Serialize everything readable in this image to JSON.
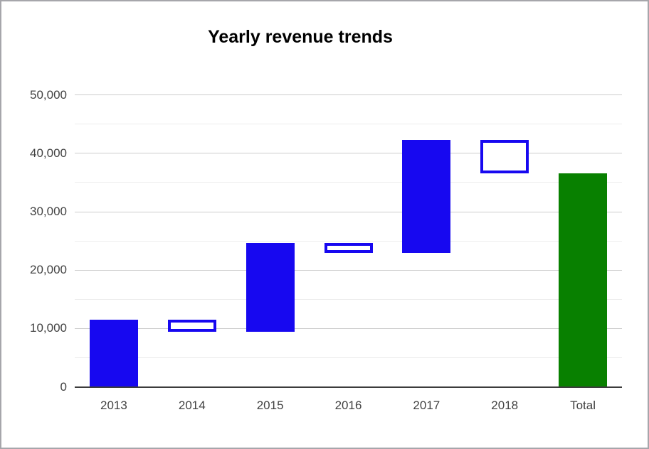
{
  "window": {
    "background_color": "#ffffff",
    "border_color": "#a6a6ab"
  },
  "chart_data": {
    "type": "bar",
    "subtype": "waterfall",
    "title": "Yearly revenue trends",
    "categories": [
      "2013",
      "2014",
      "2015",
      "2016",
      "2017",
      "2018",
      "Total"
    ],
    "bars": [
      {
        "label": "2013",
        "start": 0,
        "end": 11500,
        "change": 11500,
        "style": "increase"
      },
      {
        "label": "2014",
        "start": 11500,
        "end": 9400,
        "change": -2100,
        "style": "decrease"
      },
      {
        "label": "2015",
        "start": 9400,
        "end": 24600,
        "change": 15200,
        "style": "increase"
      },
      {
        "label": "2016",
        "start": 24600,
        "end": 22900,
        "change": -1700,
        "style": "decrease"
      },
      {
        "label": "2017",
        "start": 22900,
        "end": 42300,
        "change": 19400,
        "style": "increase"
      },
      {
        "label": "2018",
        "start": 42300,
        "end": 36600,
        "change": -5700,
        "style": "decrease"
      },
      {
        "label": "Total",
        "start": 0,
        "end": 36600,
        "change": 36600,
        "style": "total"
      }
    ],
    "y_axis": {
      "min": 0,
      "max": 50000,
      "major_ticks": [
        0,
        10000,
        20000,
        30000,
        40000,
        50000
      ],
      "major_tick_labels": [
        "0",
        "10,000",
        "20,000",
        "30,000",
        "40,000",
        "50,000"
      ],
      "minor_ticks": [
        5000,
        15000,
        25000,
        35000,
        45000
      ]
    },
    "x_axis": {
      "label": "",
      "tick_labels": [
        "2013",
        "2014",
        "2015",
        "2016",
        "2017",
        "2018",
        "Total"
      ]
    },
    "legend": "none",
    "gridlines": true,
    "colors": {
      "increase_fill": "#1708f0",
      "decrease_border": "#1708f0",
      "decrease_fill": "#ffffff",
      "total_fill": "#088000",
      "major_gridline": "#cccccc",
      "minor_gridline": "#ededed",
      "axis_line": "#3c3c3c",
      "tick_label": "#424242",
      "title": "#000000"
    }
  }
}
